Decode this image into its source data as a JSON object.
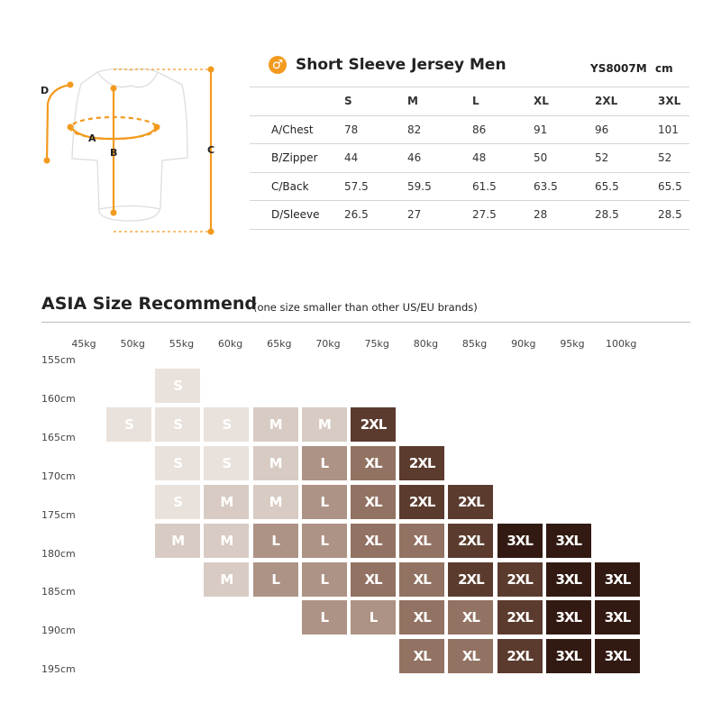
{
  "product": {
    "title": "Short Sleeve Jersey Men",
    "gender_icon": "male-symbol-icon",
    "code": "YS8007M",
    "unit": "cm",
    "accent": "#f39a1e"
  },
  "diagram": {
    "labels": {
      "A": "A",
      "B": "B",
      "C": "C",
      "D": "D"
    }
  },
  "table": {
    "headers": [
      "",
      "S",
      "M",
      "L",
      "XL",
      "2XL",
      "3XL"
    ],
    "rows": [
      [
        "A/Chest",
        "78",
        "82",
        "86",
        "91",
        "96",
        "101"
      ],
      [
        "B/Zipper",
        "44",
        "46",
        "48",
        "50",
        "52",
        "52"
      ],
      [
        "C/Back",
        "57.5",
        "59.5",
        "61.5",
        "63.5",
        "65.5",
        "65.5"
      ],
      [
        "D/Sleeve",
        "26.5",
        "27",
        "27.5",
        "28",
        "28.5",
        "28.5"
      ]
    ]
  },
  "recommend": {
    "title": "ASIA Size Recommend",
    "note": "(one size smaller than other US/EU brands)",
    "weights": [
      "45kg",
      "50kg",
      "55kg",
      "60kg",
      "65kg",
      "70kg",
      "75kg",
      "80kg",
      "85kg",
      "90kg",
      "95kg",
      "100kg"
    ],
    "heights": [
      "155cm",
      "160cm",
      "165cm",
      "170cm",
      "175cm",
      "180cm",
      "185cm",
      "190cm",
      "195cm"
    ],
    "colors": {
      "S": "#e9e1db",
      "M": "#d8cbc3",
      "L": "#ad9385",
      "XL": "#927262",
      "2XL": "#5b3b2d",
      "3XL": "#321a12"
    },
    "grid": [
      [
        "",
        "S",
        "",
        "",
        "",
        "",
        "",
        "",
        "",
        "",
        ""
      ],
      [
        "S",
        "S",
        "S",
        "M",
        "M",
        "2XL",
        "",
        "",
        "",
        "",
        ""
      ],
      [
        "",
        "S",
        "S",
        "M",
        "L",
        "XL",
        "2XL",
        "",
        "",
        "",
        ""
      ],
      [
        "",
        "S",
        "M",
        "M",
        "L",
        "XL",
        "2XL",
        "2XL",
        "",
        "",
        ""
      ],
      [
        "",
        "M",
        "M",
        "L",
        "L",
        "XL",
        "XL",
        "2XL",
        "3XL",
        "3XL",
        ""
      ],
      [
        "",
        "",
        "M",
        "L",
        "L",
        "XL",
        "XL",
        "2XL",
        "2XL",
        "3XL",
        "3XL"
      ],
      [
        "",
        "",
        "",
        "",
        "L",
        "L",
        "XL",
        "XL",
        "2XL",
        "3XL",
        "3XL"
      ],
      [
        "",
        "",
        "",
        "",
        "",
        "",
        "XL",
        "XL",
        "2XL",
        "3XL",
        "3XL"
      ]
    ]
  }
}
